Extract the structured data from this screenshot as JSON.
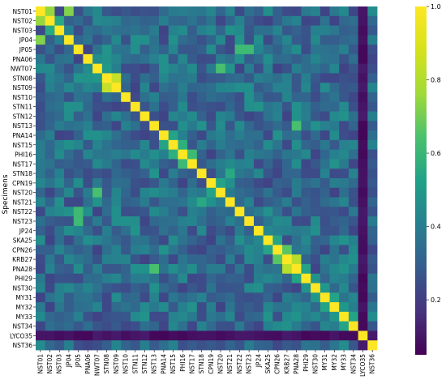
{
  "chart_data": {
    "type": "heatmap",
    "title": "",
    "xlabel": "",
    "ylabel": "Specimens",
    "labels": [
      "NST01",
      "NST02",
      "NST03",
      "JP04",
      "JP05",
      "PNA06",
      "NWT07",
      "STN08",
      "NST09",
      "NST10",
      "STN11",
      "STN12",
      "NST13",
      "PNA14",
      "NST15",
      "PHI16",
      "NST17",
      "STN18",
      "CPN19",
      "NST20",
      "NST21",
      "NST22",
      "NST23",
      "JP24",
      "SKA25",
      "CPN26",
      "KRB27",
      "PNA28",
      "PHI29",
      "NST30",
      "MY31",
      "MY32",
      "MY33",
      "NST34",
      "LYCO35",
      "NST36"
    ],
    "value_range": [
      0.05,
      1.0
    ],
    "colorbar": {
      "colormap": "viridis",
      "ticks": [
        "0.2",
        "0.4",
        "0.6",
        "0.8",
        "1.0"
      ],
      "tick_values": [
        0.2,
        0.4,
        0.6,
        0.8,
        1.0
      ]
    },
    "diagonal_value": 1.0,
    "notable_pairs": [
      {
        "a": "NST01",
        "b": "NST02",
        "value": 0.85
      },
      {
        "a": "NST01",
        "b": "JP04",
        "value": 0.82
      },
      {
        "a": "NST02",
        "b": "NST03",
        "value": 0.62
      },
      {
        "a": "STN08",
        "b": "NST09",
        "value": 0.92
      },
      {
        "a": "NWT07",
        "b": "STN08",
        "value": 0.55
      },
      {
        "a": "PNA14",
        "b": "NST15",
        "value": 0.6
      },
      {
        "a": "PHI16",
        "b": "NST17",
        "value": 0.7
      },
      {
        "a": "NST15",
        "b": "PHI16",
        "value": 0.65
      },
      {
        "a": "KRB27",
        "b": "PNA28",
        "value": 0.9
      },
      {
        "a": "CPN26",
        "b": "KRB27",
        "value": 0.75
      },
      {
        "a": "PNA28",
        "b": "PHI29",
        "value": 0.6
      },
      {
        "a": "NST13",
        "b": "PNA28",
        "value": 0.72
      },
      {
        "a": "NST20",
        "b": "NWT07",
        "value": 0.72
      },
      {
        "a": "JP05",
        "b": "NST22",
        "value": 0.7
      },
      {
        "a": "NST23",
        "b": "JP05",
        "value": 0.7
      },
      {
        "a": "STN18",
        "b": "NST21",
        "value": 0.62
      },
      {
        "a": "CPN19",
        "b": "NST20",
        "value": 0.6
      },
      {
        "a": "MY31",
        "b": "MY32",
        "value": 0.6
      },
      {
        "a": "MY32",
        "b": "MY33",
        "value": 0.55
      },
      {
        "a": "NST34",
        "b": "MY33",
        "value": 0.6
      },
      {
        "a": "SKA25",
        "b": "CPN26",
        "value": 0.6
      },
      {
        "a": "NST30",
        "b": "MY31",
        "value": 0.55
      }
    ],
    "notes": "Symmetric similarity matrix; off-diagonal values mostly in 0.25-0.55 range; row/column LYCO35 is very low (~0.05-0.12) against all specimens."
  }
}
